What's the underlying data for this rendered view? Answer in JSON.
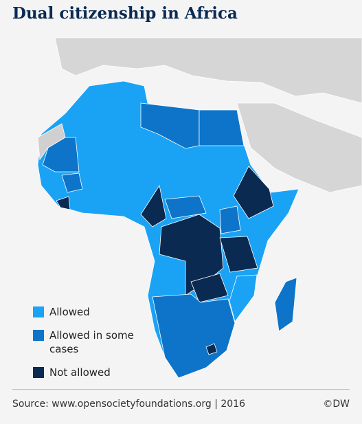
{
  "title": "Dual citizenship in Africa",
  "legend": [
    {
      "label": "Allowed",
      "color": "#1aa3f5"
    },
    {
      "label": "Allowed in some cases",
      "color": "#0d74c9"
    },
    {
      "label": "Not allowed",
      "color": "#0b2a52"
    }
  ],
  "source": "Source: www.opensocietyfoundations.org | 2016",
  "credit": "©DW"
}
